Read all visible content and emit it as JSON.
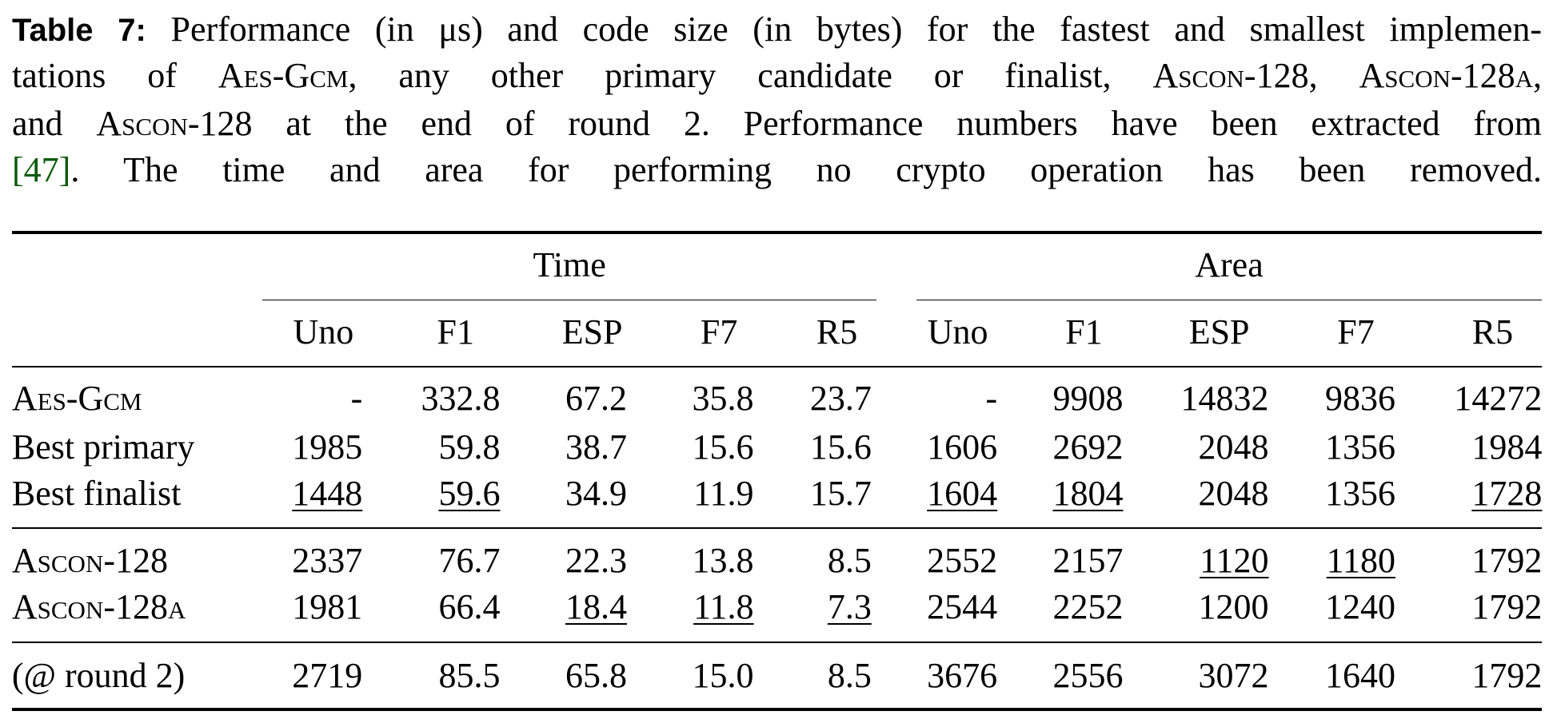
{
  "caption": {
    "lines": [
      [
        {
          "text": "Table 7:",
          "style": "bold"
        },
        {
          "text": " Performance (in μs) and code size (in bytes) for the fastest and smallest implemen-",
          "style": "plain"
        }
      ],
      [
        {
          "text": "tations of ",
          "style": "plain"
        },
        {
          "text": "Aes-Gcm",
          "style": "smallcaps"
        },
        {
          "text": ", any other primary candidate or finalist, ",
          "style": "plain"
        },
        {
          "text": "Ascon-128",
          "style": "smallcaps"
        },
        {
          "text": ", ",
          "style": "plain"
        },
        {
          "text": "Ascon-128a",
          "style": "smallcaps"
        },
        {
          "text": ",",
          "style": "plain"
        }
      ],
      [
        {
          "text": "and ",
          "style": "plain"
        },
        {
          "text": "Ascon-128",
          "style": "smallcaps"
        },
        {
          "text": " at the end of round 2. Performance numbers have been extracted from",
          "style": "plain"
        }
      ],
      [
        {
          "text": "[47]",
          "style": "link"
        },
        {
          "text": ". The time and area for performing no crypto operation has been removed.",
          "style": "plain"
        }
      ]
    ]
  },
  "table": {
    "groups": [
      "Time",
      "Area"
    ],
    "columns": [
      "Uno",
      "F1",
      "ESP",
      "F7",
      "R5",
      "Uno",
      "F1",
      "ESP",
      "F7",
      "R5"
    ],
    "sections": [
      [
        {
          "label": "Aes-Gcm",
          "label_style": "smallcaps",
          "cells": [
            "-",
            "332.8",
            "67.2",
            "35.8",
            "23.7",
            "-",
            "9908",
            "14832",
            "9836",
            "14272"
          ],
          "underlined": []
        },
        {
          "label": "Best primary",
          "label_style": "plain",
          "cells": [
            "1985",
            "59.8",
            "38.7",
            "15.6",
            "15.6",
            "1606",
            "2692",
            "2048",
            "1356",
            "1984"
          ],
          "underlined": []
        },
        {
          "label": "Best finalist",
          "label_style": "plain",
          "cells": [
            "1448",
            "59.6",
            "34.9",
            "11.9",
            "15.7",
            "1604",
            "1804",
            "2048",
            "1356",
            "1728"
          ],
          "underlined": [
            0,
            1,
            5,
            6,
            9
          ]
        }
      ],
      [
        {
          "label": "Ascon-128",
          "label_style": "smallcaps",
          "cells": [
            "2337",
            "76.7",
            "22.3",
            "13.8",
            "8.5",
            "2552",
            "2157",
            "1120",
            "1180",
            "1792"
          ],
          "underlined": [
            7,
            8
          ]
        },
        {
          "label": "Ascon-128a",
          "label_style": "smallcaps",
          "cells": [
            "1981",
            "66.4",
            "18.4",
            "11.8",
            "7.3",
            "2544",
            "2252",
            "1200",
            "1240",
            "1792"
          ],
          "underlined": [
            2,
            3,
            4
          ]
        }
      ],
      [
        {
          "label": "(@ round 2)",
          "label_style": "plain",
          "cells": [
            "2719",
            "85.5",
            "65.8",
            "15.0",
            "8.5",
            "3676",
            "2556",
            "3072",
            "1640",
            "1792"
          ],
          "underlined": []
        }
      ]
    ]
  }
}
